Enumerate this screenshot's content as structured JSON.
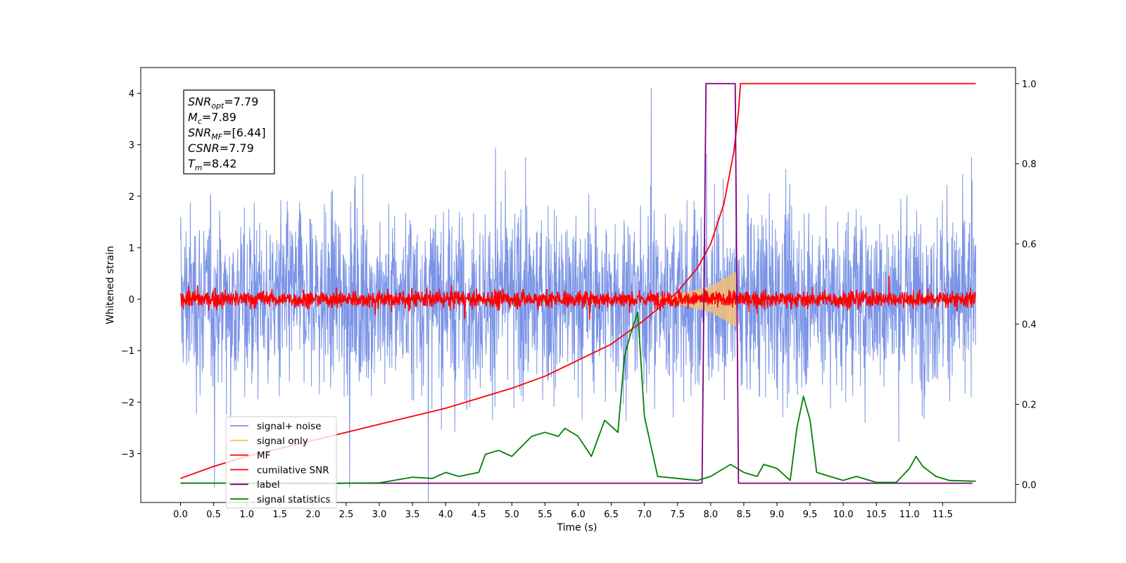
{
  "chart_data": {
    "type": "line",
    "xlabel": "Time (s)",
    "ylabel": "Whitened strain",
    "xlim": [
      -0.6,
      12.6
    ],
    "ylim": [
      -3.95,
      4.5
    ],
    "y2lim": [
      -0.045,
      1.04
    ],
    "x_ticks": [
      "0.0",
      "0.5",
      "1.0",
      "1.5",
      "2.0",
      "2.5",
      "3.0",
      "3.5",
      "4.0",
      "4.5",
      "5.0",
      "5.5",
      "6.0",
      "6.5",
      "7.0",
      "7.5",
      "8.0",
      "8.5",
      "9.0",
      "9.5",
      "10.0",
      "10.5",
      "11.0",
      "11.5"
    ],
    "y_ticks": [
      "4",
      "3",
      "2",
      "1",
      "0",
      "−1",
      "−2",
      "−3"
    ],
    "y2_ticks": [
      "1.0",
      "0.8",
      "0.6",
      "0.4",
      "0.2",
      "0.0"
    ],
    "grid": false,
    "legend_position": "lower-left",
    "annotation": {
      "lines": [
        {
          "base": "SNR",
          "sub": "opt",
          "rest": "=7.79"
        },
        {
          "base": "M",
          "sub": "c",
          "rest": "=7.89"
        },
        {
          "base": "SNR",
          "sub": "MF",
          "rest": "=[6.44]"
        },
        {
          "base": "CSNR",
          "sub": "",
          "rest": "=7.79"
        },
        {
          "base": "T",
          "sub": "m",
          "rest": "=8.42"
        }
      ]
    },
    "series": [
      {
        "name": "signal+ noise",
        "color": "#7b94e6",
        "axis": "left",
        "noise_amplitude": 1.3,
        "x_range": [
          0,
          12
        ]
      },
      {
        "name": "signal only",
        "color": "#f2c078",
        "axis": "left",
        "envelope": [
          [
            7.0,
            0.0
          ],
          [
            7.5,
            0.1
          ],
          [
            8.0,
            0.25
          ],
          [
            8.4,
            0.55
          ]
        ]
      },
      {
        "name": "MF",
        "color": "#ff0000",
        "axis": "left",
        "noise_amplitude": 0.12,
        "x_range": [
          0,
          12
        ]
      },
      {
        "name": "cumilative SNR",
        "color": "#ff0000",
        "axis": "right",
        "points": [
          [
            0.0,
            0.015
          ],
          [
            0.5,
            0.045
          ],
          [
            1.0,
            0.07
          ],
          [
            1.5,
            0.09
          ],
          [
            2.0,
            0.11
          ],
          [
            2.5,
            0.13
          ],
          [
            3.0,
            0.15
          ],
          [
            3.5,
            0.17
          ],
          [
            4.0,
            0.19
          ],
          [
            4.5,
            0.215
          ],
          [
            5.0,
            0.24
          ],
          [
            5.5,
            0.27
          ],
          [
            6.0,
            0.31
          ],
          [
            6.5,
            0.35
          ],
          [
            7.0,
            0.41
          ],
          [
            7.5,
            0.48
          ],
          [
            7.8,
            0.54
          ],
          [
            8.0,
            0.6
          ],
          [
            8.2,
            0.7
          ],
          [
            8.35,
            0.83
          ],
          [
            8.42,
            0.93
          ],
          [
            8.45,
            1.0
          ],
          [
            12.0,
            1.0
          ]
        ]
      },
      {
        "name": "label",
        "color": "#800080",
        "axis": "right",
        "points": [
          [
            0.0,
            0.003
          ],
          [
            7.87,
            0.003
          ],
          [
            7.93,
            1.0
          ],
          [
            8.37,
            1.0
          ],
          [
            8.42,
            0.003
          ],
          [
            11.95,
            0.003
          ]
        ]
      },
      {
        "name": "signal statistics",
        "color": "#008000",
        "axis": "right",
        "points": [
          [
            0.0,
            0.003
          ],
          [
            1.0,
            0.003
          ],
          [
            2.0,
            0.002
          ],
          [
            3.0,
            0.004
          ],
          [
            3.5,
            0.018
          ],
          [
            3.8,
            0.015
          ],
          [
            4.0,
            0.03
          ],
          [
            4.2,
            0.02
          ],
          [
            4.5,
            0.03
          ],
          [
            4.6,
            0.075
          ],
          [
            4.8,
            0.085
          ],
          [
            5.0,
            0.07
          ],
          [
            5.3,
            0.12
          ],
          [
            5.5,
            0.13
          ],
          [
            5.7,
            0.12
          ],
          [
            5.8,
            0.14
          ],
          [
            6.0,
            0.12
          ],
          [
            6.2,
            0.07
          ],
          [
            6.4,
            0.16
          ],
          [
            6.6,
            0.13
          ],
          [
            6.7,
            0.32
          ],
          [
            6.8,
            0.38
          ],
          [
            6.9,
            0.43
          ],
          [
            7.0,
            0.17
          ],
          [
            7.2,
            0.02
          ],
          [
            7.5,
            0.015
          ],
          [
            7.8,
            0.01
          ],
          [
            8.0,
            0.02
          ],
          [
            8.3,
            0.05
          ],
          [
            8.5,
            0.03
          ],
          [
            8.7,
            0.02
          ],
          [
            8.8,
            0.05
          ],
          [
            9.0,
            0.04
          ],
          [
            9.2,
            0.01
          ],
          [
            9.3,
            0.14
          ],
          [
            9.4,
            0.22
          ],
          [
            9.5,
            0.16
          ],
          [
            9.6,
            0.03
          ],
          [
            9.8,
            0.02
          ],
          [
            10.0,
            0.01
          ],
          [
            10.2,
            0.02
          ],
          [
            10.5,
            0.005
          ],
          [
            10.8,
            0.005
          ],
          [
            11.0,
            0.04
          ],
          [
            11.1,
            0.07
          ],
          [
            11.2,
            0.045
          ],
          [
            11.4,
            0.02
          ],
          [
            11.6,
            0.01
          ],
          [
            12.0,
            0.008
          ]
        ]
      }
    ]
  }
}
